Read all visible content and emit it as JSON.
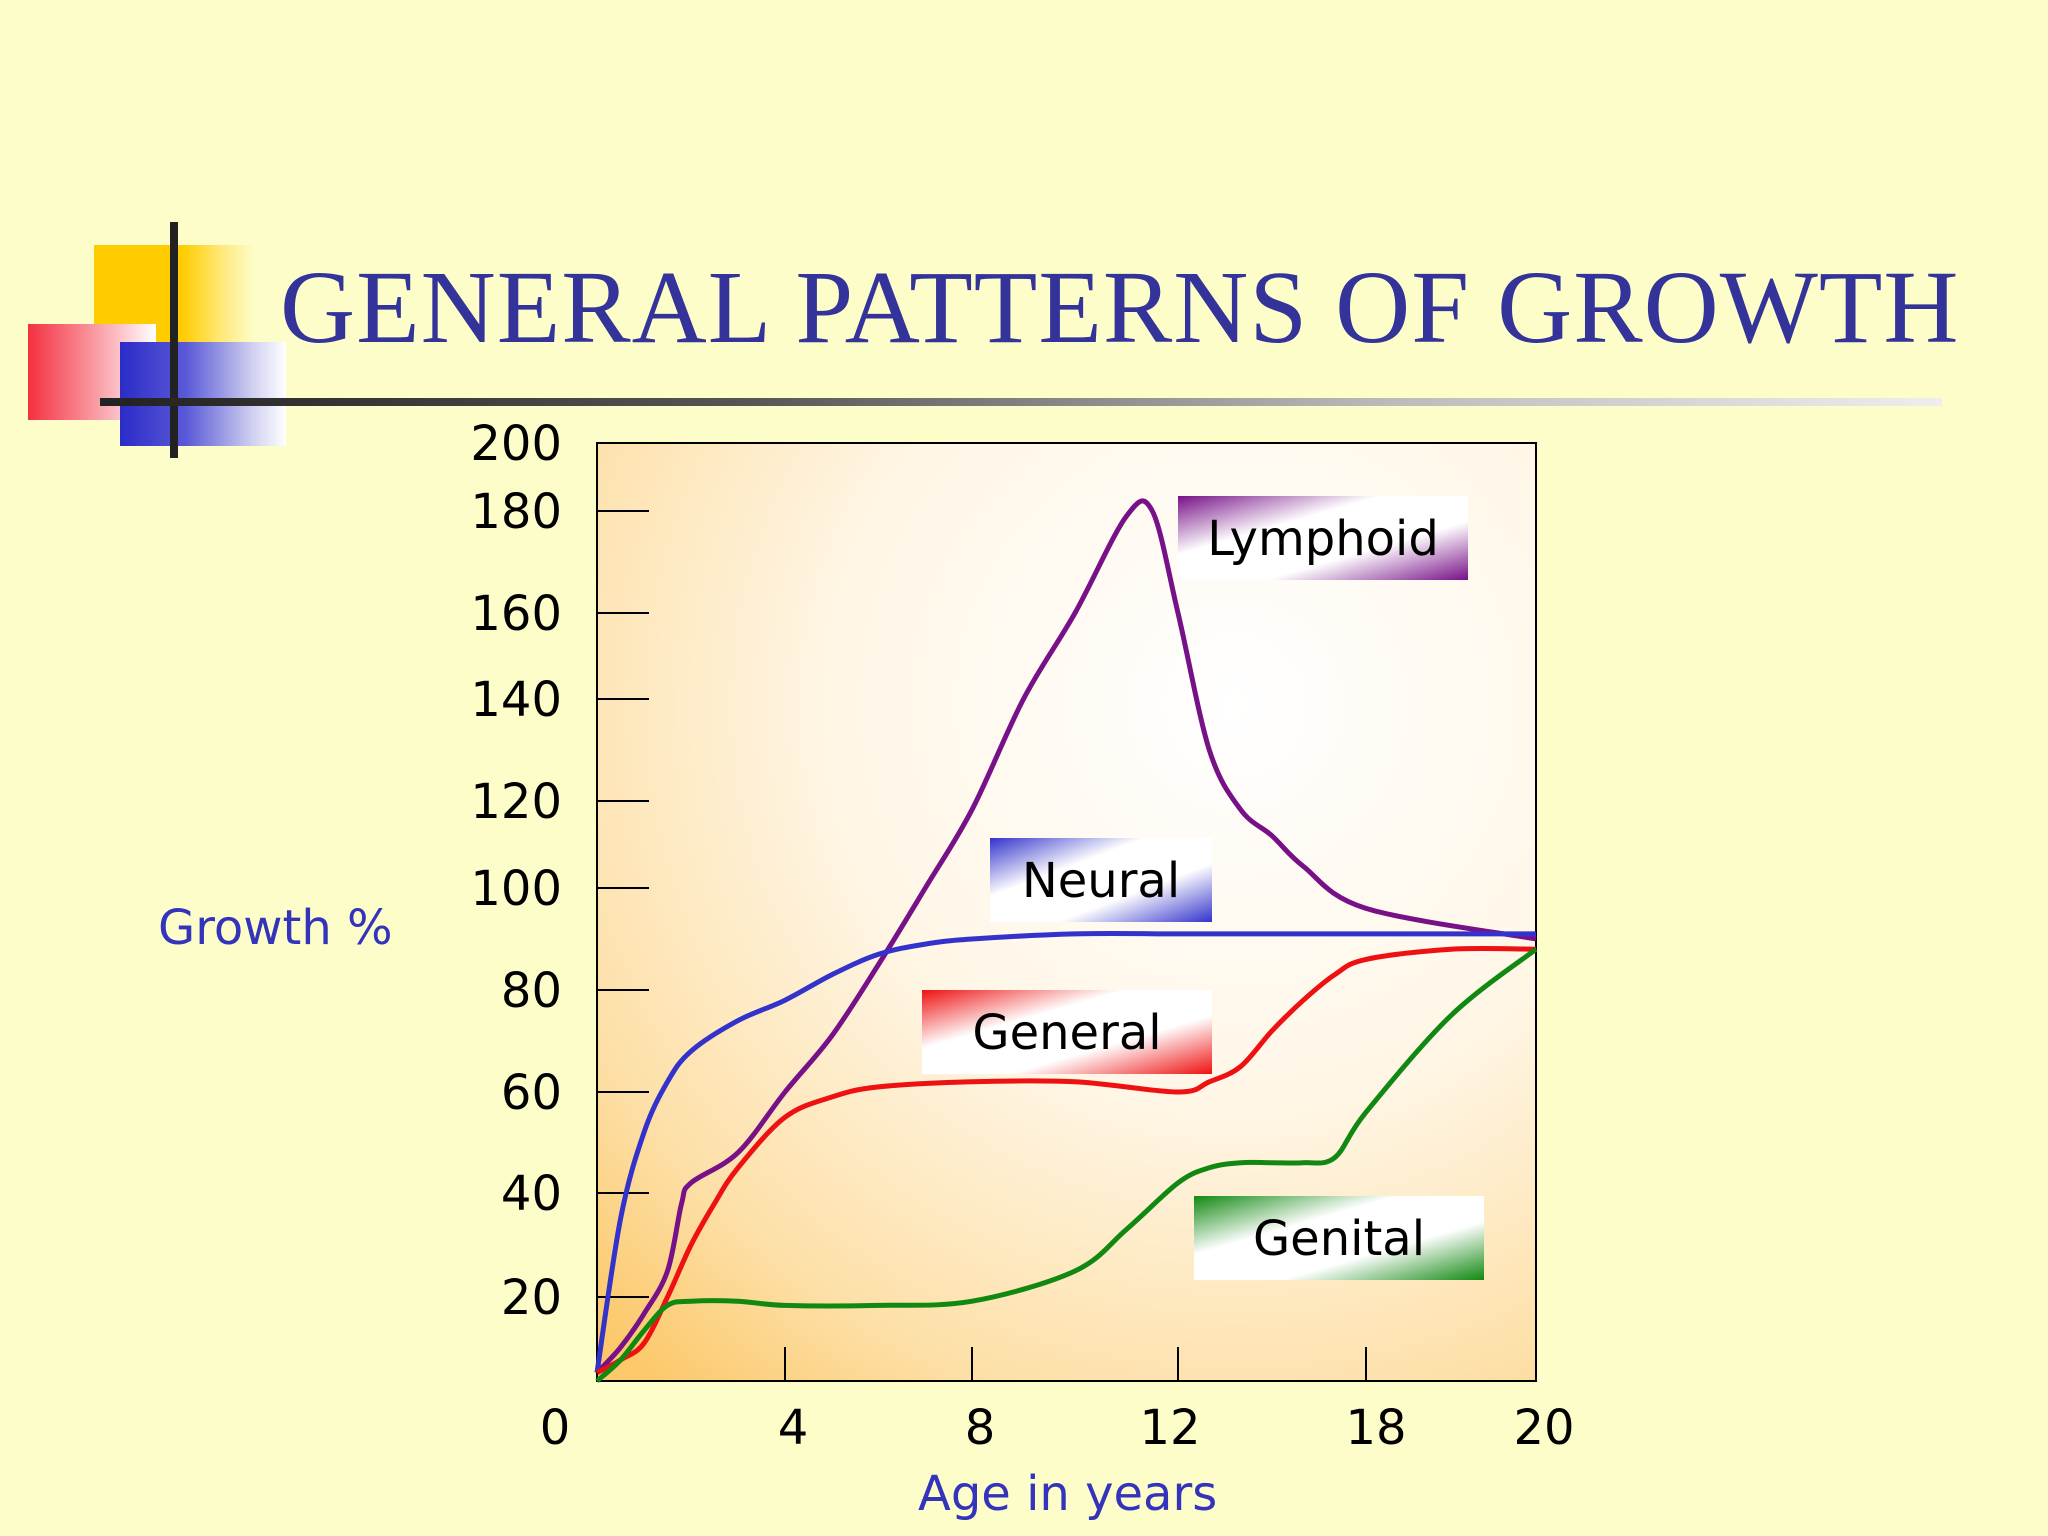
{
  "slide": {
    "title": "GENERAL PATTERNS OF GROWTH"
  },
  "colors": {
    "title": "#333399",
    "axis_label": "#3333bb",
    "neural": "#3333cc",
    "general": "#ee1111",
    "lymphoid": "#771188",
    "genital": "#118811",
    "plot_bg_edge": "#fcc86a"
  },
  "chart_data": {
    "type": "line",
    "title": "GENERAL PATTERNS OF GROWTH",
    "xlabel": "Age in years",
    "ylabel": "Growth %",
    "x_ticks": [
      "0",
      "4",
      "8",
      "12",
      "18",
      "20"
    ],
    "y_ticks": [
      "20",
      "40",
      "60",
      "80",
      "100",
      "120",
      "140",
      "160",
      "180",
      "200"
    ],
    "grid": false,
    "series": [
      {
        "name": "Lymphoid",
        "color": "#771188",
        "x": [
          0,
          0.5,
          1,
          1.5,
          1.8,
          2,
          3,
          4,
          5,
          6,
          7,
          8,
          9,
          10,
          11,
          11.5,
          12,
          13,
          14,
          15,
          16,
          18,
          20
        ],
        "y": [
          2,
          8,
          16,
          25,
          38,
          42,
          48,
          60,
          71,
          85,
          100,
          118,
          140,
          160,
          179,
          180,
          160,
          130,
          118,
          112,
          105,
          96,
          90
        ]
      },
      {
        "name": "Neural",
        "color": "#3333cc",
        "x": [
          0,
          0.5,
          1,
          1.5,
          2,
          3,
          4,
          5,
          6,
          7,
          8,
          10,
          12,
          14,
          16,
          18,
          20
        ],
        "y": [
          2,
          35,
          52,
          62,
          68,
          74,
          78,
          83,
          87,
          89,
          90,
          91,
          91,
          91,
          91,
          91,
          91
        ]
      },
      {
        "name": "General",
        "color": "#ee1111",
        "x": [
          0,
          0.5,
          1,
          1.5,
          2,
          2.5,
          3,
          4,
          5,
          6,
          8,
          10,
          12,
          13,
          14,
          15,
          16,
          17,
          18,
          19,
          20
        ],
        "y": [
          2,
          5,
          9,
          20,
          30,
          38,
          45,
          55,
          59,
          61,
          62,
          62,
          60,
          62,
          65,
          72,
          78,
          83,
          86,
          88,
          88
        ]
      },
      {
        "name": "Genital",
        "color": "#118811",
        "x": [
          0,
          0.5,
          1,
          1.5,
          2,
          3,
          4,
          6,
          8,
          10,
          11,
          12,
          13,
          14,
          15,
          16,
          17,
          18,
          19,
          20
        ],
        "y": [
          0,
          5,
          12,
          18,
          19,
          19,
          18,
          18,
          19,
          25,
          33,
          42,
          45,
          46,
          46,
          46,
          47,
          56,
          75,
          88
        ]
      }
    ]
  }
}
